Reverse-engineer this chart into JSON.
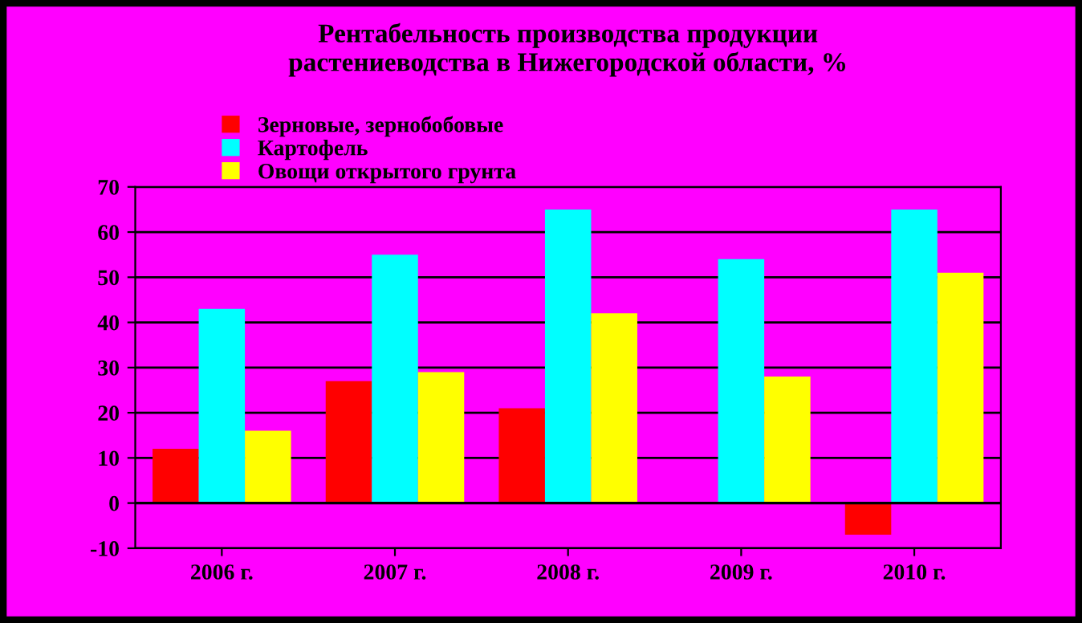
{
  "chart_data": {
    "type": "bar",
    "title": "Рентабельность производства продукции\nрастениеводства в Нижегородской области, %",
    "categories": [
      "2006 г.",
      "2007 г.",
      "2008 г.",
      "2009 г.",
      "2010 г."
    ],
    "series": [
      {
        "name": "Зерновые, зернобобовые",
        "color": "#ff0000",
        "values": [
          12,
          27,
          21,
          0,
          -7
        ]
      },
      {
        "name": "Картофель",
        "color": "#00ffff",
        "values": [
          43,
          55,
          65,
          54,
          65
        ]
      },
      {
        "name": "Овощи открытого грунта",
        "color": "#ffff00",
        "values": [
          16,
          29,
          42,
          28,
          51
        ]
      }
    ],
    "ylim": [
      -10,
      70
    ],
    "yticks": [
      -10,
      0,
      10,
      20,
      30,
      40,
      50,
      60,
      70
    ],
    "grid": "y",
    "legend": "top left"
  }
}
